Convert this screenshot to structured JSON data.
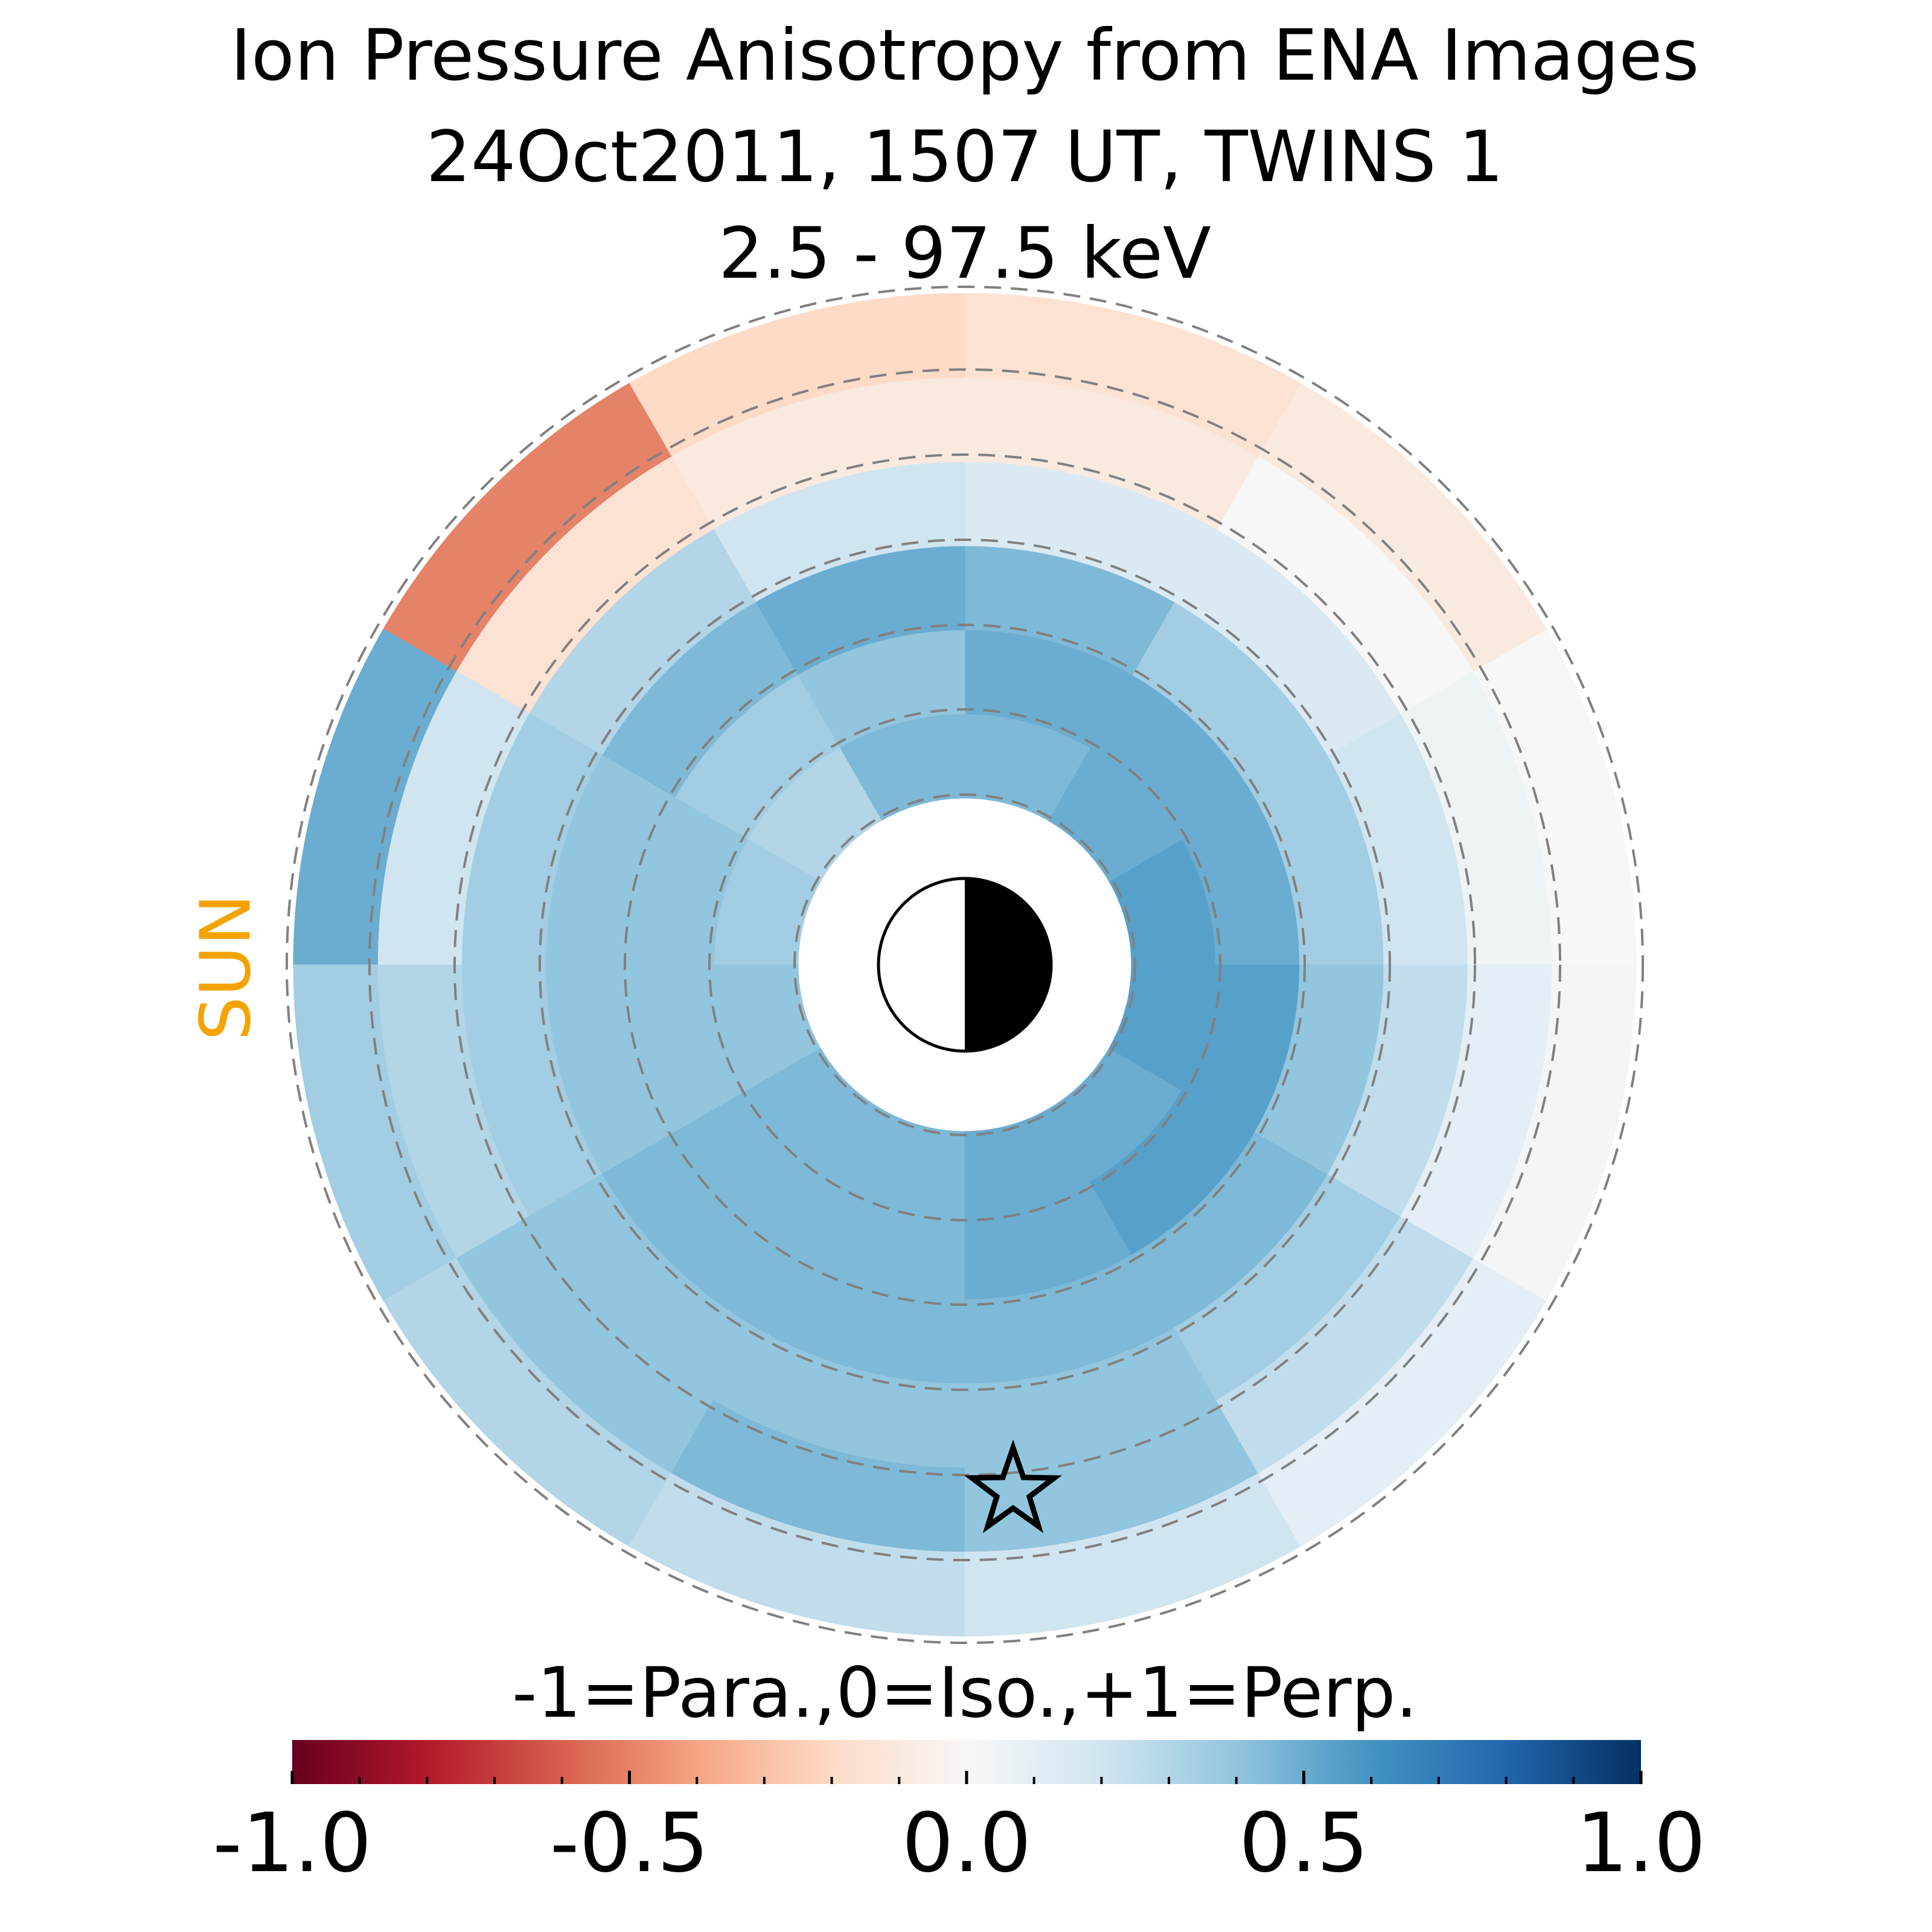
{
  "chart_data": {
    "type": "polar_heatmap",
    "title_lines": [
      "Ion Pressure Anisotropy from  ENA Images",
      "24Oct2011, 1507 UT,  TWINS 1",
      "2.5 - 97.5 keV"
    ],
    "sun_label": "SUN",
    "colorbar_label": "-1=Para.,0=Iso.,+1=Perp.",
    "clim": [
      -1,
      1
    ],
    "cticks": [
      {
        "value": -1,
        "label": "-1.0"
      },
      -0.5,
      {
        "value": 0,
        "label": "0.0"
      },
      0.5,
      {
        "value": 1,
        "label": "1.0"
      }
    ],
    "cticks_minor": [
      -0.9,
      -0.8,
      -0.7,
      -0.6,
      -0.4,
      -0.3,
      -0.2,
      -0.1,
      0.1,
      0.2,
      0.3,
      0.4,
      0.6,
      0.7,
      0.8,
      0.9
    ],
    "colormap": [
      "#67001f",
      "#b2182b",
      "#d6604d",
      "#f4a582",
      "#fddbc7",
      "#f7f7f7",
      "#d1e5f0",
      "#92c5de",
      "#4393c3",
      "#2166ac",
      "#053061"
    ],
    "field": {
      "sector_angles": [
        15,
        45,
        75,
        105,
        135,
        165,
        195,
        225,
        255,
        285,
        315,
        345
      ],
      "values": [
        [
          0.55,
          0.5,
          0.45,
          0.45,
          0.3,
          0.35,
          0.4,
          0.45,
          0.45,
          0.5,
          0.5,
          0.55
        ],
        [
          0.5,
          0.5,
          0.5,
          0.4,
          0.35,
          0.4,
          0.4,
          0.45,
          0.45,
          0.5,
          0.55,
          0.55
        ],
        [
          0.35,
          0.35,
          0.45,
          0.5,
          0.45,
          0.4,
          0.4,
          0.45,
          0.45,
          0.45,
          0.45,
          0.4
        ],
        [
          0.2,
          0.15,
          0.15,
          0.2,
          0.3,
          0.35,
          0.35,
          0.4,
          0.4,
          0.4,
          0.35,
          0.25
        ],
        [
          0.05,
          0.0,
          -0.1,
          -0.1,
          -0.15,
          0.2,
          0.3,
          0.4,
          0.45,
          0.4,
          0.25,
          0.1
        ],
        [
          0.0,
          -0.1,
          -0.15,
          -0.2,
          -0.5,
          0.5,
          0.35,
          0.3,
          0.25,
          0.2,
          0.1,
          0.02
        ]
      ]
    }
  }
}
